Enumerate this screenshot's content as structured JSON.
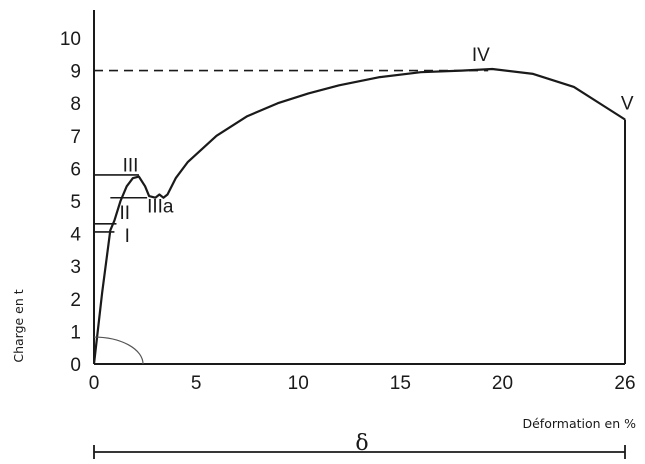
{
  "chart_data": {
    "type": "line",
    "xlabel": "Déformation en %",
    "ylabel": "Charge en t",
    "x_ticks": [
      "0",
      "5",
      "10",
      "15",
      "20",
      "26"
    ],
    "y_ticks": [
      "0",
      "1",
      "2",
      "3",
      "4",
      "5",
      "6",
      "7",
      "8",
      "9",
      "10"
    ],
    "xlim": [
      0,
      26
    ],
    "ylim": [
      0,
      10
    ],
    "grid": false,
    "series": [
      {
        "x": [
          0,
          0.4,
          0.8,
          1.0,
          1.3,
          1.6,
          1.9,
          2.2,
          2.5,
          2.7,
          3.0,
          3.2,
          3.4,
          3.6,
          4.0,
          4.6,
          6.0,
          7.5,
          9.0,
          10.5,
          12.0,
          14.0,
          16.0,
          18.0,
          19.5,
          21.5,
          23.5,
          25.0,
          26.0
        ],
        "y": [
          0,
          2.2,
          4.1,
          4.4,
          5.0,
          5.45,
          5.7,
          5.75,
          5.45,
          5.15,
          5.1,
          5.2,
          5.1,
          5.2,
          5.7,
          6.2,
          7.0,
          7.6,
          8.0,
          8.3,
          8.55,
          8.8,
          8.95,
          9.0,
          9.05,
          8.9,
          8.5,
          7.9,
          7.5
        ]
      }
    ],
    "point_labels": [
      {
        "text": "I",
        "x": 1.5,
        "y": 3.75
      },
      {
        "text": "II",
        "x": 1.25,
        "y": 4.45
      },
      {
        "text": "III",
        "x": 1.4,
        "y": 5.9
      },
      {
        "text": "IIIa",
        "x": 2.6,
        "y": 4.65
      },
      {
        "text": "IV",
        "x": 18.5,
        "y": 9.3
      },
      {
        "text": "V",
        "x": 25.8,
        "y": 7.8
      }
    ],
    "reference_lines": [
      {
        "y": 9.0,
        "x_from": 0,
        "x_to": 19.3,
        "style": "dashed"
      },
      {
        "y": 5.8,
        "x_from": 0,
        "x_to": 2.2,
        "style": "solid"
      },
      {
        "y": 5.1,
        "x_from": 0.8,
        "x_to": 2.6,
        "style": "solid"
      },
      {
        "y": 4.3,
        "x_from": 0,
        "x_to": 1.1,
        "style": "solid"
      },
      {
        "y": 4.05,
        "x_from": 0,
        "x_to": 1.0,
        "style": "solid"
      }
    ],
    "end_drop_x": 26,
    "modulus_arc_radius": 2.4,
    "span_symbol": "δ",
    "span_range": [
      0,
      26
    ]
  }
}
